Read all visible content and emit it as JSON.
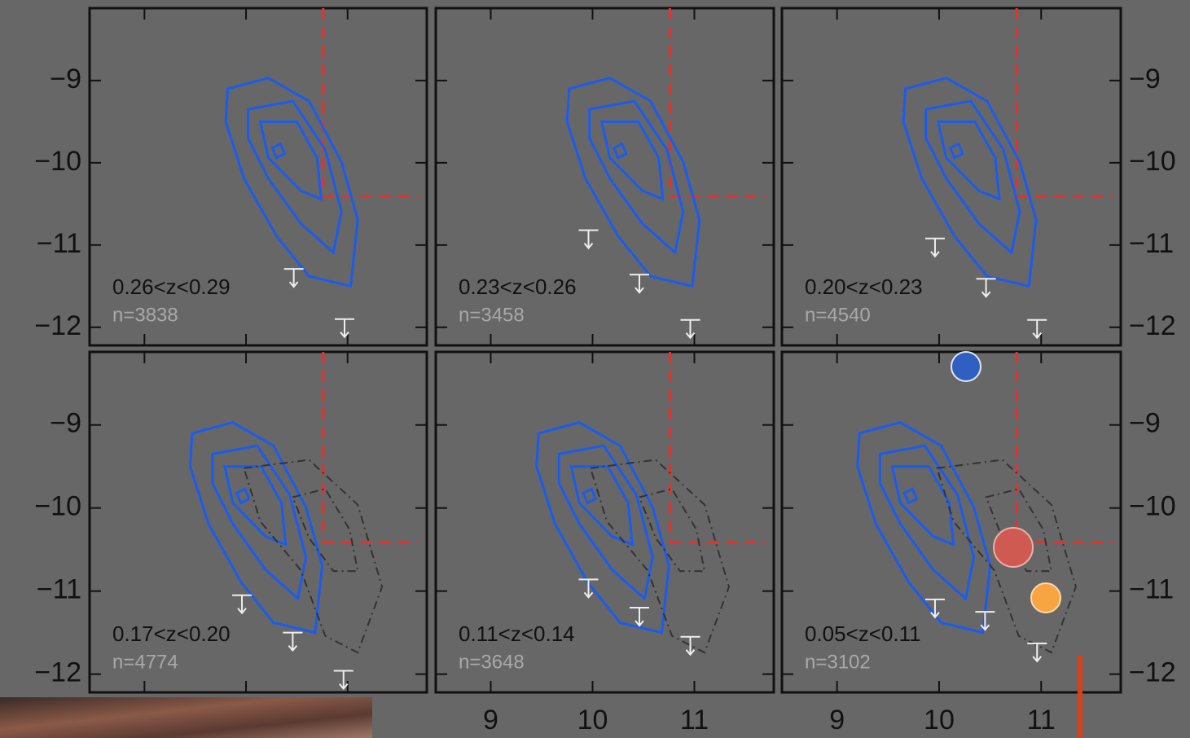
{
  "chart_data": [
    {
      "type": "contour",
      "label": "0.26<z<0.29",
      "n_label": "n=3838",
      "xlim": [
        8.46,
        11.78
      ],
      "ylim": [
        -12.22,
        -8.12
      ],
      "xticks": [
        9,
        10,
        11
      ],
      "yticks": [
        {
          "value": -9,
          "label": "−9"
        },
        {
          "value": -10,
          "label": "−10"
        },
        {
          "value": -11,
          "label": "−11"
        },
        {
          "value": -12,
          "label": "−12"
        }
      ],
      "thresholds": {
        "x": 10.76,
        "y": -10.41,
        "color": "#e8302a"
      },
      "contours": [
        {
          "color": "#1a5cf0",
          "x": [
            9.82,
            10.22,
            10.62,
            10.94,
            11.1,
            11.03,
            10.62,
            10.3,
            9.98,
            9.8
          ],
          "y": [
            -9.1,
            -8.97,
            -9.25,
            -9.99,
            -10.69,
            -11.5,
            -11.38,
            -10.89,
            -10.19,
            -9.5
          ]
        },
        {
          "color": "#1a5cf0",
          "x": [
            10.02,
            10.46,
            10.78,
            10.94,
            10.86,
            10.54,
            10.22,
            10.02
          ],
          "y": [
            -9.35,
            -9.25,
            -9.84,
            -10.59,
            -11.09,
            -10.74,
            -10.19,
            -9.7
          ]
        },
        {
          "color": "#1a5cf0",
          "x": [
            10.14,
            10.5,
            10.7,
            10.74,
            10.54,
            10.22
          ],
          "y": [
            -9.5,
            -9.5,
            -9.94,
            -10.44,
            -10.34,
            -9.94
          ]
        },
        {
          "color": "#1a5cf0",
          "x": [
            10.26,
            10.34,
            10.38,
            10.3
          ],
          "y": [
            -9.82,
            -9.77,
            -9.89,
            -9.94
          ]
        }
      ],
      "upper_limits": {
        "x": [
          10.47,
          10.97
        ],
        "y": [
          -11.29,
          -11.9
        ]
      }
    },
    {
      "type": "contour",
      "label": "0.23<z<0.26",
      "n_label": "n=3458",
      "xlim": [
        8.46,
        11.78
      ],
      "ylim": [
        -12.22,
        -8.12
      ],
      "xticks": [
        9,
        10,
        11
      ],
      "yticks": [
        {
          "value": -9,
          "label": "−9"
        },
        {
          "value": -10,
          "label": "−10"
        },
        {
          "value": -11,
          "label": "−11"
        },
        {
          "value": -12,
          "label": "−12"
        }
      ],
      "thresholds": {
        "x": 10.76,
        "y": -10.41,
        "color": "#e8302a"
      },
      "contours": [
        {
          "color": "#1a5cf0",
          "x": [
            9.77,
            10.17,
            10.57,
            10.89,
            11.05,
            10.98,
            10.57,
            10.25,
            9.93,
            9.75
          ],
          "y": [
            -9.1,
            -8.97,
            -9.25,
            -9.99,
            -10.69,
            -11.5,
            -11.38,
            -10.89,
            -10.19,
            -9.5
          ]
        },
        {
          "color": "#1a5cf0",
          "x": [
            9.97,
            10.41,
            10.73,
            10.89,
            10.81,
            10.49,
            10.17,
            9.97
          ],
          "y": [
            -9.35,
            -9.25,
            -9.84,
            -10.59,
            -11.09,
            -10.74,
            -10.19,
            -9.7
          ]
        },
        {
          "color": "#1a5cf0",
          "x": [
            10.09,
            10.45,
            10.65,
            10.69,
            10.49,
            10.17
          ],
          "y": [
            -9.5,
            -9.5,
            -9.94,
            -10.44,
            -10.34,
            -9.94
          ]
        },
        {
          "color": "#1a5cf0",
          "x": [
            10.21,
            10.29,
            10.33,
            10.25
          ],
          "y": [
            -9.82,
            -9.77,
            -9.89,
            -9.94
          ]
        }
      ],
      "upper_limits": {
        "x": [
          9.96,
          10.46,
          10.96
        ],
        "y": [
          -10.82,
          -11.36,
          -11.91
        ]
      }
    },
    {
      "type": "contour",
      "label": "0.20<z<0.23",
      "n_label": "n=4540",
      "xlim": [
        8.46,
        11.78
      ],
      "ylim": [
        -12.22,
        -8.12
      ],
      "xticks": [
        9,
        10,
        11
      ],
      "yticks": [
        {
          "value": -9,
          "label": "−9"
        },
        {
          "value": -10,
          "label": "−10"
        },
        {
          "value": -11,
          "label": "−11"
        },
        {
          "value": -12,
          "label": "−12"
        }
      ],
      "thresholds": {
        "x": 10.76,
        "y": -10.41,
        "color": "#e8302a"
      },
      "contours": [
        {
          "color": "#1a5cf0",
          "x": [
            9.67,
            10.07,
            10.47,
            10.79,
            10.95,
            10.88,
            10.47,
            10.15,
            9.83,
            9.65
          ],
          "y": [
            -9.1,
            -8.97,
            -9.25,
            -9.99,
            -10.69,
            -11.5,
            -11.38,
            -10.89,
            -10.19,
            -9.5
          ]
        },
        {
          "color": "#1a5cf0",
          "x": [
            9.87,
            10.31,
            10.63,
            10.79,
            10.71,
            10.39,
            10.07,
            9.87
          ],
          "y": [
            -9.35,
            -9.25,
            -9.84,
            -10.59,
            -11.09,
            -10.74,
            -10.19,
            -9.7
          ]
        },
        {
          "color": "#1a5cf0",
          "x": [
            9.99,
            10.35,
            10.55,
            10.59,
            10.39,
            10.07
          ],
          "y": [
            -9.5,
            -9.5,
            -9.94,
            -10.44,
            -10.34,
            -9.94
          ]
        },
        {
          "color": "#1a5cf0",
          "x": [
            10.11,
            10.19,
            10.23,
            10.15
          ],
          "y": [
            -9.82,
            -9.77,
            -9.89,
            -9.94
          ]
        }
      ],
      "upper_limits": {
        "x": [
          9.96,
          10.46,
          10.96
        ],
        "y": [
          -10.92,
          -11.41,
          -11.91
        ]
      }
    },
    {
      "type": "contour",
      "label": "0.17<z<0.20",
      "n_label": "n=4774",
      "xlim": [
        8.46,
        11.78
      ],
      "ylim": [
        -12.22,
        -8.12
      ],
      "xticks": [
        9,
        10,
        11
      ],
      "yticks": [
        {
          "value": -9,
          "label": "−9"
        },
        {
          "value": -10,
          "label": "−10"
        },
        {
          "value": -11,
          "label": "−11"
        },
        {
          "value": -12,
          "label": "−12"
        }
      ],
      "thresholds": {
        "x": 10.76,
        "y": -10.41,
        "color": "#e8302a"
      },
      "contours": [
        {
          "color": "#1a5cf0",
          "x": [
            9.47,
            9.87,
            10.27,
            10.59,
            10.75,
            10.68,
            10.27,
            9.95,
            9.63,
            9.45
          ],
          "y": [
            -9.1,
            -8.97,
            -9.25,
            -9.99,
            -10.69,
            -11.5,
            -11.38,
            -10.89,
            -10.19,
            -9.5
          ]
        },
        {
          "color": "#1a5cf0",
          "x": [
            9.67,
            10.11,
            10.43,
            10.59,
            10.51,
            10.19,
            9.87,
            9.67
          ],
          "y": [
            -9.35,
            -9.25,
            -9.84,
            -10.59,
            -11.09,
            -10.74,
            -10.19,
            -9.7
          ]
        },
        {
          "color": "#1a5cf0",
          "x": [
            9.79,
            10.15,
            10.35,
            10.39,
            10.19,
            9.87
          ],
          "y": [
            -9.5,
            -9.5,
            -9.94,
            -10.44,
            -10.34,
            -9.94
          ]
        },
        {
          "color": "#1a5cf0",
          "x": [
            9.91,
            9.99,
            10.03,
            9.95
          ],
          "y": [
            -9.82,
            -9.77,
            -9.89,
            -9.94
          ]
        },
        {
          "color": "#333333",
          "dashed": true,
          "x": [
            9.98,
            10.62,
            11.1,
            11.34,
            11.1,
            10.78,
            10.54,
            10.14
          ],
          "y": [
            -9.52,
            -9.42,
            -9.96,
            -10.95,
            -11.74,
            -11.54,
            -10.75,
            -10.16
          ]
        },
        {
          "color": "#333333",
          "dashed": true,
          "x": [
            10.46,
            10.78,
            11.02,
            11.1,
            10.86,
            10.62
          ],
          "y": [
            -9.87,
            -9.77,
            -10.26,
            -10.76,
            -10.76,
            -10.36
          ]
        }
      ],
      "upper_limits": {
        "x": [
          9.96,
          10.46,
          10.96
        ],
        "y": [
          -11.05,
          -11.5,
          -11.96
        ]
      }
    },
    {
      "type": "contour",
      "label": "0.11<z<0.14",
      "n_label": "n=3648",
      "xlim": [
        8.46,
        11.78
      ],
      "ylim": [
        -12.22,
        -8.12
      ],
      "xticks": [
        9,
        10,
        11
      ],
      "yticks": [
        {
          "value": -9,
          "label": "−9"
        },
        {
          "value": -10,
          "label": "−10"
        },
        {
          "value": -11,
          "label": "−11"
        },
        {
          "value": -12,
          "label": "−12"
        }
      ],
      "thresholds": {
        "x": 10.76,
        "y": -10.41,
        "color": "#e8302a"
      },
      "contours": [
        {
          "color": "#1a5cf0",
          "x": [
            9.47,
            9.87,
            10.27,
            10.59,
            10.75,
            10.68,
            10.27,
            9.95,
            9.63,
            9.45
          ],
          "y": [
            -9.1,
            -8.97,
            -9.25,
            -9.99,
            -10.69,
            -11.5,
            -11.38,
            -10.89,
            -10.19,
            -9.5
          ]
        },
        {
          "color": "#1a5cf0",
          "x": [
            9.67,
            10.11,
            10.43,
            10.59,
            10.51,
            10.19,
            9.87,
            9.67
          ],
          "y": [
            -9.35,
            -9.25,
            -9.84,
            -10.59,
            -11.09,
            -10.74,
            -10.19,
            -9.7
          ]
        },
        {
          "color": "#1a5cf0",
          "x": [
            9.79,
            10.15,
            10.35,
            10.39,
            10.19,
            9.87
          ],
          "y": [
            -9.5,
            -9.5,
            -9.94,
            -10.44,
            -10.34,
            -9.94
          ]
        },
        {
          "color": "#1a5cf0",
          "x": [
            9.91,
            9.99,
            10.03,
            9.95
          ],
          "y": [
            -9.82,
            -9.77,
            -9.89,
            -9.94
          ]
        },
        {
          "color": "#333333",
          "dashed": true,
          "x": [
            9.98,
            10.62,
            11.1,
            11.34,
            11.1,
            10.78,
            10.54,
            10.14
          ],
          "y": [
            -9.52,
            -9.42,
            -9.96,
            -10.95,
            -11.74,
            -11.54,
            -10.75,
            -10.16
          ]
        },
        {
          "color": "#333333",
          "dashed": true,
          "x": [
            10.46,
            10.78,
            11.02,
            11.1,
            10.86,
            10.62
          ],
          "y": [
            -9.87,
            -9.77,
            -10.26,
            -10.76,
            -10.76,
            -10.36
          ]
        }
      ],
      "upper_limits": {
        "x": [
          9.96,
          10.46,
          10.96
        ],
        "y": [
          -10.86,
          -11.2,
          -11.55
        ]
      }
    },
    {
      "type": "contour",
      "label": "0.05<z<0.11",
      "n_label": "n=3102",
      "xlim": [
        8.46,
        11.78
      ],
      "ylim": [
        -12.22,
        -8.12
      ],
      "xticks": [
        9,
        10,
        11
      ],
      "yticks": [
        {
          "value": -9,
          "label": "−9"
        },
        {
          "value": -10,
          "label": "−10"
        },
        {
          "value": -11,
          "label": "−11"
        },
        {
          "value": -12,
          "label": "−12"
        }
      ],
      "thresholds": {
        "x": 10.76,
        "y": -10.41,
        "color": "#e8302a"
      },
      "contours": [
        {
          "color": "#1a5cf0",
          "x": [
            9.22,
            9.62,
            10.02,
            10.34,
            10.5,
            10.43,
            10.02,
            9.7,
            9.38,
            9.2
          ],
          "y": [
            -9.1,
            -8.97,
            -9.25,
            -9.99,
            -10.69,
            -11.5,
            -11.38,
            -10.89,
            -10.19,
            -9.5
          ]
        },
        {
          "color": "#1a5cf0",
          "x": [
            9.42,
            9.86,
            10.18,
            10.34,
            10.26,
            9.94,
            9.62,
            9.42
          ],
          "y": [
            -9.35,
            -9.25,
            -9.84,
            -10.59,
            -11.09,
            -10.74,
            -10.19,
            -9.7
          ]
        },
        {
          "color": "#1a5cf0",
          "x": [
            9.54,
            9.9,
            10.1,
            10.14,
            9.94,
            9.62
          ],
          "y": [
            -9.5,
            -9.5,
            -9.94,
            -10.44,
            -10.34,
            -9.94
          ]
        },
        {
          "color": "#1a5cf0",
          "x": [
            9.66,
            9.74,
            9.78,
            9.7
          ],
          "y": [
            -9.82,
            -9.77,
            -9.89,
            -9.94
          ]
        },
        {
          "color": "#333333",
          "dashed": true,
          "x": [
            9.98,
            10.62,
            11.1,
            11.34,
            11.1,
            10.78,
            10.54,
            10.14
          ],
          "y": [
            -9.52,
            -9.42,
            -9.96,
            -10.95,
            -11.74,
            -11.54,
            -10.75,
            -10.16
          ]
        },
        {
          "color": "#333333",
          "dashed": true,
          "x": [
            10.46,
            10.78,
            11.02,
            11.1,
            10.86,
            10.62
          ],
          "y": [
            -9.87,
            -9.77,
            -10.26,
            -10.76,
            -10.76,
            -10.36
          ]
        }
      ],
      "upper_limits": {
        "x": [
          9.96,
          10.45,
          10.96
        ],
        "y": [
          -11.1,
          -11.25,
          -11.63
        ]
      }
    }
  ]
}
